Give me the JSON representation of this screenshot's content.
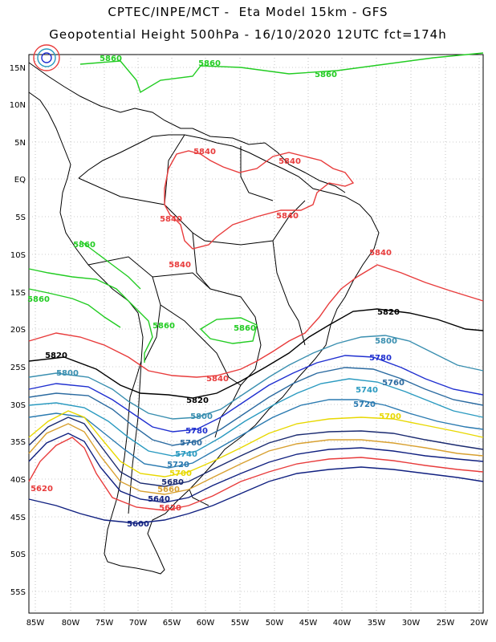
{
  "header": {
    "line1": "CPTEC/INPE/MCT -  Eta Model 15km - GFS",
    "line2": "Geopotential Height 500hPa - 16/10/2020 12UTC fct=174h"
  },
  "axes": {
    "lat_labels": [
      "15N",
      "10N",
      "5N",
      "EQ",
      "5S",
      "10S",
      "15S",
      "20S",
      "25S",
      "30S",
      "35S",
      "40S",
      "45S",
      "50S",
      "55S"
    ],
    "lon_labels": [
      "85W",
      "80W",
      "75W",
      "70W",
      "65W",
      "60W",
      "55W",
      "50W",
      "45W",
      "40W",
      "35W",
      "30W",
      "25W",
      "20W"
    ]
  },
  "contour_labels": [
    {
      "text": "5860",
      "color": "#22cc22"
    },
    {
      "text": "5860",
      "color": "#22cc22"
    },
    {
      "text": "5860",
      "color": "#22cc22"
    },
    {
      "text": "5860",
      "color": "#22cc22"
    },
    {
      "text": "5860",
      "color": "#22cc22"
    },
    {
      "text": "5860",
      "color": "#22cc22"
    },
    {
      "text": "5860",
      "color": "#22cc22"
    },
    {
      "text": "5840",
      "color": "#e83c3c"
    },
    {
      "text": "5840",
      "color": "#e83c3c"
    },
    {
      "text": "5840",
      "color": "#e83c3c"
    },
    {
      "text": "5840",
      "color": "#e83c3c"
    },
    {
      "text": "5840",
      "color": "#e83c3c"
    },
    {
      "text": "5840",
      "color": "#e83c3c"
    },
    {
      "text": "5840",
      "color": "#e83c3c"
    },
    {
      "text": "5820",
      "color": "#000000"
    },
    {
      "text": "5820",
      "color": "#000000"
    },
    {
      "text": "5820",
      "color": "#000000"
    },
    {
      "text": "5800",
      "color": "#3a8fb0"
    },
    {
      "text": "5800",
      "color": "#3a8fb0"
    },
    {
      "text": "5800",
      "color": "#3a8fb0"
    },
    {
      "text": "5780",
      "color": "#1f2fd0"
    },
    {
      "text": "5780",
      "color": "#1f2fd0"
    },
    {
      "text": "5760",
      "color": "#2a6aa0"
    },
    {
      "text": "5760",
      "color": "#2a6aa0"
    },
    {
      "text": "5740",
      "color": "#2a9ac0"
    },
    {
      "text": "5740",
      "color": "#2a9ac0"
    },
    {
      "text": "5720",
      "color": "#2a7ab0"
    },
    {
      "text": "5720",
      "color": "#2a7ab0"
    },
    {
      "text": "5700",
      "color": "#e8d800"
    },
    {
      "text": "5700",
      "color": "#e8d800"
    },
    {
      "text": "5680",
      "color": "#1a2a70"
    },
    {
      "text": "5660",
      "color": "#d8a030"
    },
    {
      "text": "5640",
      "color": "#102080"
    },
    {
      "text": "5620",
      "color": "#e83c3c"
    },
    {
      "text": "5620",
      "color": "#e83c3c"
    },
    {
      "text": "5600",
      "color": "#102080"
    }
  ]
}
